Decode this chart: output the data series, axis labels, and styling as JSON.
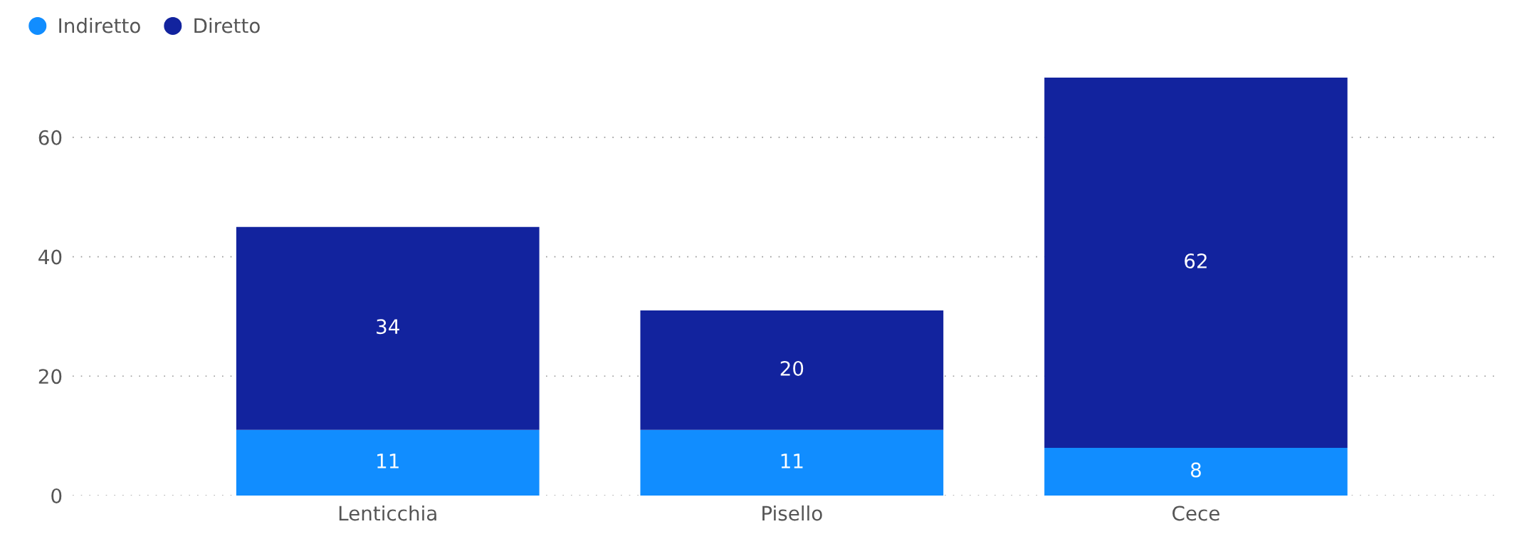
{
  "chart_data": {
    "type": "bar",
    "stacked": true,
    "categories": [
      "Lenticchia",
      "Pisello",
      "Cece"
    ],
    "series": [
      {
        "name": "Indiretto",
        "color": "#118dff",
        "values": [
          11,
          11,
          8
        ]
      },
      {
        "name": "Diretto",
        "color": "#12239e",
        "values": [
          34,
          20,
          62
        ]
      }
    ],
    "ylim": [
      0,
      70
    ],
    "yticks": [
      0,
      20,
      40,
      60
    ],
    "grid": "y",
    "legend": "top left",
    "data_labels": true
  }
}
